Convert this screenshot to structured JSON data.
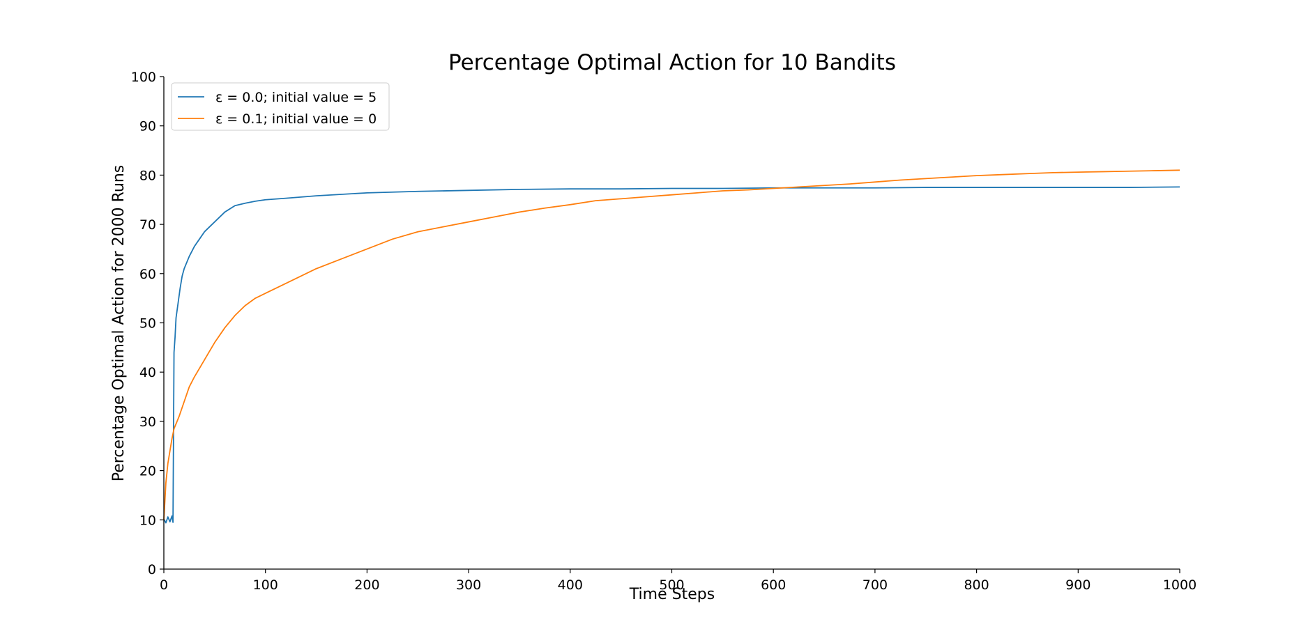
{
  "chart_data": {
    "type": "line",
    "title": "Percentage Optimal Action for 10 Bandits",
    "xlabel": "Time Steps",
    "ylabel": "Percentage Optimal Action for 2000 Runs",
    "xlim": [
      0,
      1000
    ],
    "ylim": [
      0,
      100
    ],
    "x_ticks": [
      0,
      100,
      200,
      300,
      400,
      500,
      600,
      700,
      800,
      900,
      1000
    ],
    "y_ticks": [
      0,
      10,
      20,
      30,
      40,
      50,
      60,
      70,
      80,
      90,
      100
    ],
    "grid": false,
    "legend_position": "top-left",
    "series": [
      {
        "name": "ε = 0.0; initial value = 5",
        "color": "#1f77b4",
        "x": [
          0,
          2,
          4,
          6,
          8,
          9,
          10,
          11,
          12,
          14,
          16,
          18,
          20,
          25,
          30,
          35,
          40,
          50,
          60,
          70,
          80,
          90,
          100,
          120,
          150,
          200,
          250,
          300,
          350,
          400,
          450,
          500,
          550,
          600,
          650,
          700,
          750,
          800,
          850,
          900,
          950,
          1000
        ],
        "values": [
          10.2,
          9.4,
          10.6,
          9.6,
          10.8,
          9.5,
          44.0,
          47.0,
          51.0,
          54.0,
          57.0,
          59.5,
          61.0,
          63.5,
          65.5,
          67.0,
          68.5,
          70.5,
          72.5,
          73.8,
          74.3,
          74.7,
          75.0,
          75.3,
          75.8,
          76.4,
          76.7,
          76.9,
          77.1,
          77.2,
          77.2,
          77.3,
          77.3,
          77.4,
          77.4,
          77.4,
          77.5,
          77.5,
          77.5,
          77.5,
          77.5,
          77.6
        ]
      },
      {
        "name": "ε = 0.1; initial value = 0",
        "color": "#ff7f0e",
        "x": [
          0,
          2,
          4,
          6,
          8,
          10,
          15,
          20,
          25,
          30,
          40,
          50,
          60,
          70,
          80,
          90,
          100,
          120,
          150,
          175,
          200,
          225,
          250,
          275,
          300,
          325,
          350,
          375,
          400,
          425,
          450,
          475,
          500,
          525,
          550,
          575,
          600,
          625,
          650,
          675,
          700,
          725,
          750,
          775,
          800,
          825,
          850,
          875,
          900,
          925,
          950,
          975,
          1000
        ],
        "values": [
          10.0,
          17.5,
          21.5,
          24.0,
          26.5,
          28.5,
          31.0,
          34.0,
          37.0,
          39.0,
          42.5,
          46.0,
          49.0,
          51.5,
          53.5,
          55.0,
          56.0,
          58.0,
          61.0,
          63.0,
          65.0,
          67.0,
          68.5,
          69.5,
          70.5,
          71.5,
          72.5,
          73.3,
          74.0,
          74.8,
          75.2,
          75.6,
          76.0,
          76.4,
          76.8,
          77.0,
          77.3,
          77.6,
          77.9,
          78.2,
          78.6,
          79.0,
          79.3,
          79.6,
          79.9,
          80.1,
          80.3,
          80.5,
          80.6,
          80.7,
          80.8,
          80.9,
          81.0
        ]
      }
    ]
  }
}
